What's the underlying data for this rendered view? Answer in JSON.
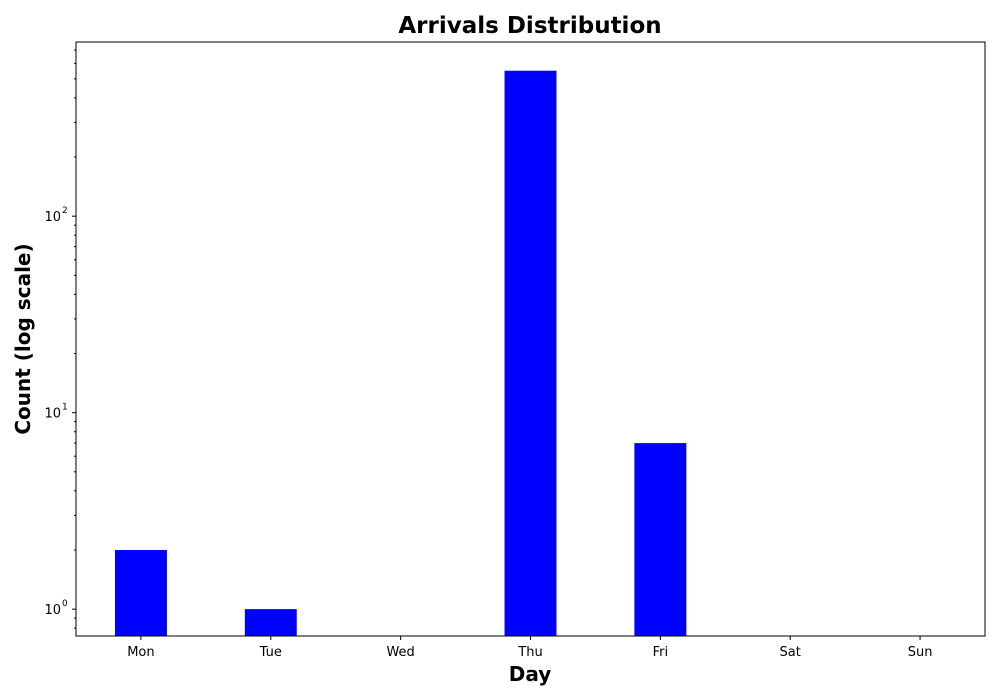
{
  "chart_data": {
    "type": "bar",
    "title": "Arrivals Distribution",
    "xlabel": "Day",
    "ylabel": "Count (log scale)",
    "y_scale": "log",
    "ylim": [
      0.73,
      770
    ],
    "categories": [
      "Mon",
      "Tue",
      "Wed",
      "Thu",
      "Fri",
      "Sat",
      "Sun"
    ],
    "values": [
      2,
      1,
      0,
      550,
      7,
      0,
      0
    ],
    "yticks": [
      {
        "value": 1,
        "base": "10",
        "exp": "0"
      },
      {
        "value": 10,
        "base": "10",
        "exp": "1"
      },
      {
        "value": 100,
        "base": "10",
        "exp": "2"
      }
    ],
    "bar_color": "#0000ff",
    "grid": false
  }
}
